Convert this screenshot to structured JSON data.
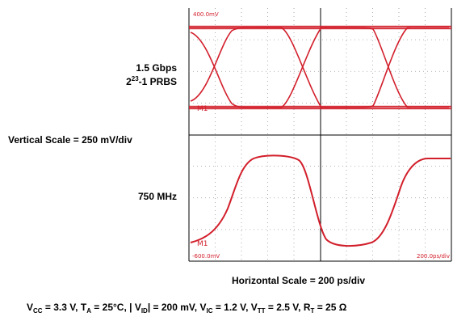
{
  "left_labels": {
    "data_rate": "1.5 Gbps",
    "prbs_base": "2",
    "prbs_exp": "23",
    "prbs_rest": "-1 PRBS",
    "vertical_scale": "Vertical Scale = 250 mV/div",
    "frequency": "750 MHz"
  },
  "horizontal_scale": "Horizontal Scale = 200 ps/div",
  "scope": {
    "readout_top": "400.0mV",
    "readout_bottom_left": "-600.0mV",
    "readout_bottom_right": "200.0ps/div",
    "marker_top": "M1",
    "marker_bottom": "M1",
    "trace_color": "#d21f2b",
    "grid_color": "#000000"
  },
  "conditions": {
    "vcc_sym": "V",
    "vcc_sub": "CC",
    "vcc_val": " = 3.3 V, ",
    "ta_sym": "T",
    "ta_sub": "A",
    "ta_val": " = 25°C, ",
    "vid_pre": "| V",
    "vid_sub": "ID",
    "vid_val": "| = 200 mV, ",
    "vic_sym": "V",
    "vic_sub": "IC",
    "vic_val": " = 1.2 V, ",
    "vtt_sym": "V",
    "vtt_sub": "TT",
    "vtt_val": " = 2.5 V, ",
    "rt_sym": "R",
    "rt_sub": "T",
    "rt_val": " = 25 Ω"
  }
}
